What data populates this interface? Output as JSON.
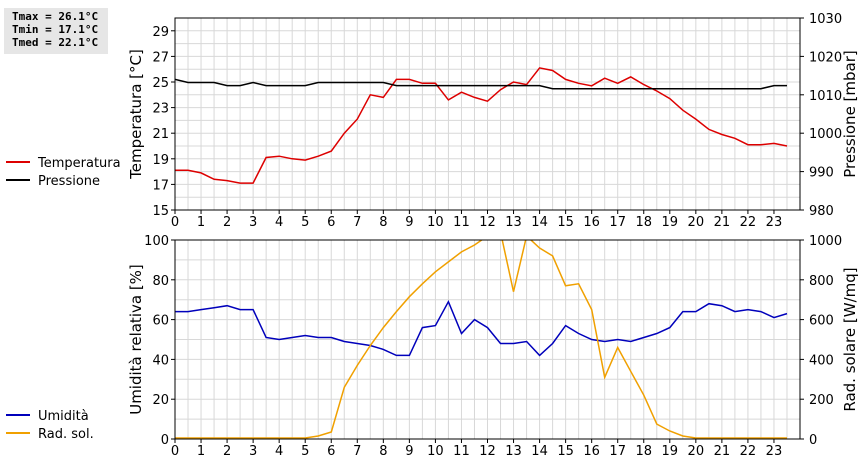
{
  "stats": {
    "tmax": "Tmax = 26.1°C",
    "tmin": "Tmin = 17.1°C",
    "tmed": "Tmed = 22.1°C"
  },
  "colors": {
    "temperature": "#dd0000",
    "pressure": "#000000",
    "humidity": "#0000bb",
    "radiation": "#f0a000",
    "grid": "#d8d8d8"
  },
  "chart_data": [
    {
      "type": "line",
      "xlim": [
        0,
        24
      ],
      "x_ticks": [
        "0",
        "1",
        "2",
        "3",
        "4",
        "5",
        "6",
        "7",
        "8",
        "9",
        "10",
        "11",
        "12",
        "13",
        "14",
        "15",
        "16",
        "17",
        "18",
        "19",
        "20",
        "21",
        "22",
        "23"
      ],
      "ylabel": "Temperatura [°C]",
      "ylim": [
        15,
        30
      ],
      "y_ticks": [
        "15",
        "17",
        "19",
        "21",
        "23",
        "25",
        "27",
        "29"
      ],
      "y2label": "Pressione [mbar]",
      "y2lim": [
        980,
        1030
      ],
      "y2_ticks": [
        "980",
        "990",
        "1000",
        "1010",
        "1020",
        "1030"
      ],
      "grid": true,
      "legend_position": "left",
      "series": [
        {
          "name": "Temperatura",
          "axis": "left",
          "x": [
            0,
            0.5,
            1,
            1.5,
            2,
            2.5,
            3,
            3.5,
            4,
            4.5,
            5,
            5.5,
            6,
            6.5,
            7,
            7.5,
            8,
            8.5,
            9,
            9.5,
            10,
            10.5,
            11,
            11.5,
            12,
            12.5,
            13,
            13.5,
            14,
            14.5,
            15,
            15.5,
            16,
            16.5,
            17,
            17.5,
            18,
            18.5,
            19,
            19.5,
            20,
            20.5,
            21,
            21.5,
            22,
            22.5,
            23,
            23.5
          ],
          "values": [
            18.1,
            18.1,
            17.9,
            17.4,
            17.3,
            17.1,
            17.1,
            19.1,
            19.2,
            19.0,
            18.9,
            19.2,
            19.6,
            21.0,
            22.1,
            24.0,
            23.8,
            25.2,
            25.2,
            24.9,
            24.9,
            23.6,
            24.2,
            23.8,
            23.5,
            24.4,
            25.0,
            24.8,
            26.1,
            25.9,
            25.2,
            24.9,
            24.7,
            25.3,
            24.9,
            25.4,
            24.8,
            24.3,
            23.7,
            22.8,
            22.1,
            21.3,
            20.9,
            20.6,
            20.1,
            20.1,
            20.2,
            20.0
          ]
        },
        {
          "name": "Pressione",
          "axis": "right",
          "x": [
            0,
            0.5,
            1,
            1.5,
            2,
            2.5,
            3,
            3.5,
            4,
            4.5,
            5,
            5.5,
            6,
            6.5,
            7,
            7.5,
            8,
            8.5,
            9,
            9.5,
            10,
            10.5,
            11,
            11.5,
            12,
            12.5,
            13,
            13.5,
            14,
            14.5,
            15,
            15.5,
            16,
            16.5,
            17,
            17.5,
            18,
            18.5,
            19,
            19.5,
            20,
            20.5,
            21,
            21.5,
            22,
            22.5,
            23,
            23.5
          ],
          "values": [
            1014,
            1013.2,
            1013.2,
            1013.2,
            1012.4,
            1012.4,
            1013.2,
            1012.4,
            1012.4,
            1012.4,
            1012.4,
            1013.2,
            1013.2,
            1013.2,
            1013.2,
            1013.2,
            1013.2,
            1012.4,
            1012.4,
            1012.4,
            1012.4,
            1012.4,
            1012.4,
            1012.4,
            1012.4,
            1012.4,
            1012.4,
            1012.4,
            1012.4,
            1011.6,
            1011.6,
            1011.6,
            1011.6,
            1011.6,
            1011.6,
            1011.6,
            1011.6,
            1011.6,
            1011.6,
            1011.6,
            1011.6,
            1011.6,
            1011.6,
            1011.6,
            1011.6,
            1011.6,
            1012.4,
            1012.4
          ]
        }
      ]
    },
    {
      "type": "line",
      "xlim": [
        0,
        24
      ],
      "x_ticks": [
        "0",
        "1",
        "2",
        "3",
        "4",
        "5",
        "6",
        "7",
        "8",
        "9",
        "10",
        "11",
        "12",
        "13",
        "14",
        "15",
        "16",
        "17",
        "18",
        "19",
        "20",
        "21",
        "22",
        "23"
      ],
      "ylabel": "Umidità relativa [%]",
      "ylim": [
        0,
        100
      ],
      "y_ticks": [
        "0",
        "20",
        "40",
        "60",
        "80",
        "100"
      ],
      "y2label": "Rad. solare [W/mq]",
      "y2lim": [
        0,
        1000
      ],
      "y2_ticks": [
        "0",
        "200",
        "400",
        "600",
        "800",
        "1000"
      ],
      "grid": true,
      "legend_position": "left",
      "series": [
        {
          "name": "Umidità",
          "axis": "left",
          "x": [
            0,
            0.5,
            1,
            1.5,
            2,
            2.5,
            3,
            3.5,
            4,
            4.5,
            5,
            5.5,
            6,
            6.5,
            7,
            7.5,
            8,
            8.5,
            9,
            9.5,
            10,
            10.5,
            11,
            11.5,
            12,
            12.5,
            13,
            13.5,
            14,
            14.5,
            15,
            15.5,
            16,
            16.5,
            17,
            17.5,
            18,
            18.5,
            19,
            19.5,
            20,
            20.5,
            21,
            21.5,
            22,
            22.5,
            23,
            23.5
          ],
          "values": [
            64,
            64,
            65,
            66,
            67,
            65,
            65,
            51,
            50,
            51,
            52,
            51,
            51,
            49,
            48,
            47,
            45,
            42,
            42,
            56,
            57,
            69,
            53,
            60,
            56,
            48,
            48,
            49,
            42,
            48,
            57,
            53,
            50,
            49,
            50,
            49,
            51,
            53,
            56,
            64,
            64,
            68,
            67,
            64,
            65,
            64,
            61,
            63
          ]
        },
        {
          "name": "Rad. sol.",
          "axis": "right",
          "x": [
            0,
            0.5,
            1,
            1.5,
            2,
            2.5,
            3,
            3.5,
            4,
            4.5,
            5,
            5.5,
            6,
            6.5,
            7,
            7.5,
            8,
            8.5,
            9,
            9.5,
            10,
            10.5,
            11,
            11.5,
            12,
            12.5,
            13,
            13.5,
            14,
            14.5,
            15,
            15.5,
            16,
            16.5,
            17,
            17.5,
            18,
            18.5,
            19,
            19.5,
            20,
            20.5,
            21,
            21.5,
            22,
            22.5,
            23,
            23.5
          ],
          "values": [
            5,
            5,
            5,
            5,
            5,
            5,
            5,
            5,
            5,
            5,
            5,
            15,
            35,
            260,
            370,
            470,
            560,
            640,
            715,
            780,
            840,
            890,
            940,
            975,
            1020,
            1040,
            740,
            1020,
            960,
            920,
            770,
            780,
            650,
            310,
            460,
            340,
            220,
            75,
            40,
            15,
            5,
            5,
            5,
            5,
            5,
            5,
            5,
            5
          ]
        }
      ]
    }
  ]
}
